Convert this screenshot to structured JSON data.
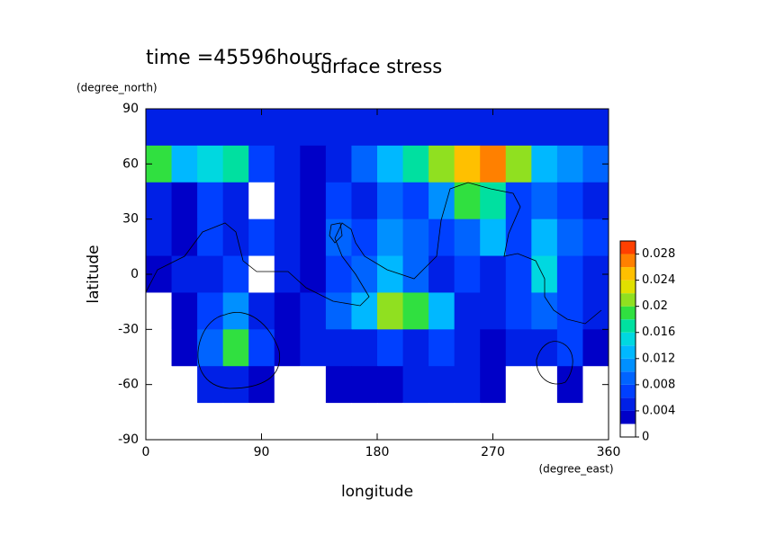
{
  "chart_data": {
    "type": "contour",
    "title": "surface stress",
    "subtitle": "time =45596hours",
    "x_label": "longitude",
    "x_unit": "(degree_east)",
    "y_label": "latitude",
    "y_unit": "(degree_north)",
    "xlim": [
      0,
      360
    ],
    "xticks": [
      0,
      90,
      180,
      270,
      360
    ],
    "ylim": [
      -90,
      90
    ],
    "yticks": [
      -90,
      -60,
      -30,
      0,
      30,
      60,
      90
    ],
    "lon": [
      10,
      30,
      50,
      70,
      90,
      110,
      130,
      150,
      170,
      190,
      210,
      230,
      250,
      270,
      290,
      310,
      330,
      350
    ],
    "lat": [
      80,
      60,
      40,
      20,
      0,
      -20,
      -40,
      -60,
      -80
    ],
    "z": [
      [
        0.005,
        0.005,
        0.005,
        0.005,
        0.005,
        0.005,
        0.005,
        0.005,
        0.005,
        0.005,
        0.005,
        0.005,
        0.005,
        0.005,
        0.005,
        0.005,
        0.005,
        0.005
      ],
      [
        0.018,
        0.012,
        0.014,
        0.016,
        0.006,
        0.004,
        0.003,
        0.005,
        0.008,
        0.012,
        0.016,
        0.02,
        0.024,
        0.026,
        0.02,
        0.012,
        0.01,
        0.008
      ],
      [
        0.004,
        0.003,
        0.006,
        0.004,
        0.001,
        0.005,
        0.003,
        0.006,
        0.004,
        0.008,
        0.006,
        0.01,
        0.018,
        0.016,
        0.006,
        0.008,
        0.006,
        0.004
      ],
      [
        0.005,
        0.003,
        0.006,
        0.004,
        0.006,
        0.004,
        0.003,
        0.008,
        0.006,
        0.01,
        0.008,
        0.006,
        0.008,
        0.012,
        0.006,
        0.012,
        0.008,
        0.006
      ],
      [
        0.002,
        0.004,
        0.005,
        0.006,
        0.001,
        0.004,
        0.003,
        0.006,
        0.008,
        0.012,
        0.008,
        0.004,
        0.006,
        0.004,
        0.006,
        0.014,
        0.006,
        0.004
      ],
      [
        0.001,
        0.003,
        0.006,
        0.01,
        0.004,
        0.003,
        0.004,
        0.008,
        0.012,
        0.02,
        0.018,
        0.012,
        0.005,
        0.004,
        0.006,
        0.008,
        0.006,
        0.004
      ],
      [
        0,
        0.003,
        0.008,
        0.018,
        0.006,
        0.002,
        0.004,
        0.005,
        0.004,
        0.006,
        0.005,
        0.006,
        0.004,
        0.003,
        0.004,
        0.004,
        0.006,
        0.003
      ],
      [
        0,
        0,
        0.004,
        0.005,
        0.003,
        0.001,
        0.001,
        0.002,
        0.003,
        0.003,
        0.004,
        0.005,
        0.004,
        0.003,
        0.001,
        0.001,
        0.002,
        0
      ],
      [
        0,
        0,
        0,
        0,
        0,
        0,
        0,
        0,
        0,
        0,
        0,
        0,
        0,
        0,
        0,
        0,
        0,
        0
      ]
    ],
    "levels": [
      0,
      0.002,
      0.004,
      0.006,
      0.008,
      0.01,
      0.012,
      0.014,
      0.016,
      0.018,
      0.02,
      0.022,
      0.024,
      0.026,
      0.028,
      0.03
    ],
    "colors": [
      "#ffffff",
      "#0000c8",
      "#0020e6",
      "#0040ff",
      "#0064ff",
      "#0090ff",
      "#00b8ff",
      "#00d8e0",
      "#00e0a0",
      "#30e040",
      "#90e020",
      "#e0e000",
      "#ffc000",
      "#ff8000",
      "#ff4000"
    ],
    "cbar_ticks": [
      0,
      0.004,
      0.008,
      0.012,
      0.016,
      0.02,
      0.024,
      0.028
    ]
  }
}
